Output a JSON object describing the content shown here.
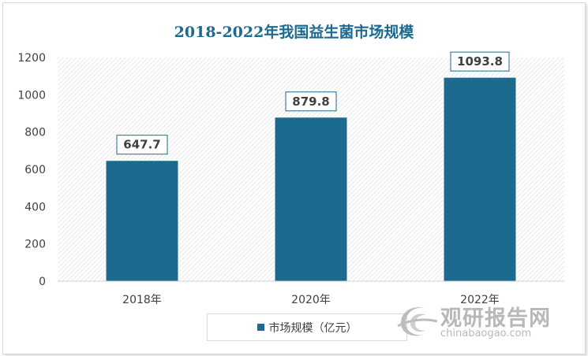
{
  "chart_data": {
    "type": "bar",
    "title": "2018-2022年我国益生菌市场规模",
    "categories": [
      "2018年",
      "2020年",
      "2022年"
    ],
    "series": [
      {
        "name": "市场规模（亿元）",
        "values": [
          647.7,
          879.8,
          1093.8
        ]
      }
    ],
    "data_labels": [
      "647.7",
      "879.8",
      "1093.8"
    ],
    "ylim": [
      0,
      1200
    ],
    "yticks": [
      0,
      200,
      400,
      600,
      800,
      1000,
      1200
    ],
    "ytick_labels": [
      "0",
      "200",
      "400",
      "600",
      "800",
      "1000",
      "1200"
    ],
    "grid": false,
    "legend_placement": "bottom",
    "bar_color": "#1c6a8e"
  },
  "watermark": {
    "brand_cn": "观研报告网",
    "brand_en": "chinabaogao.com",
    "icon": "globe-logo-icon"
  }
}
